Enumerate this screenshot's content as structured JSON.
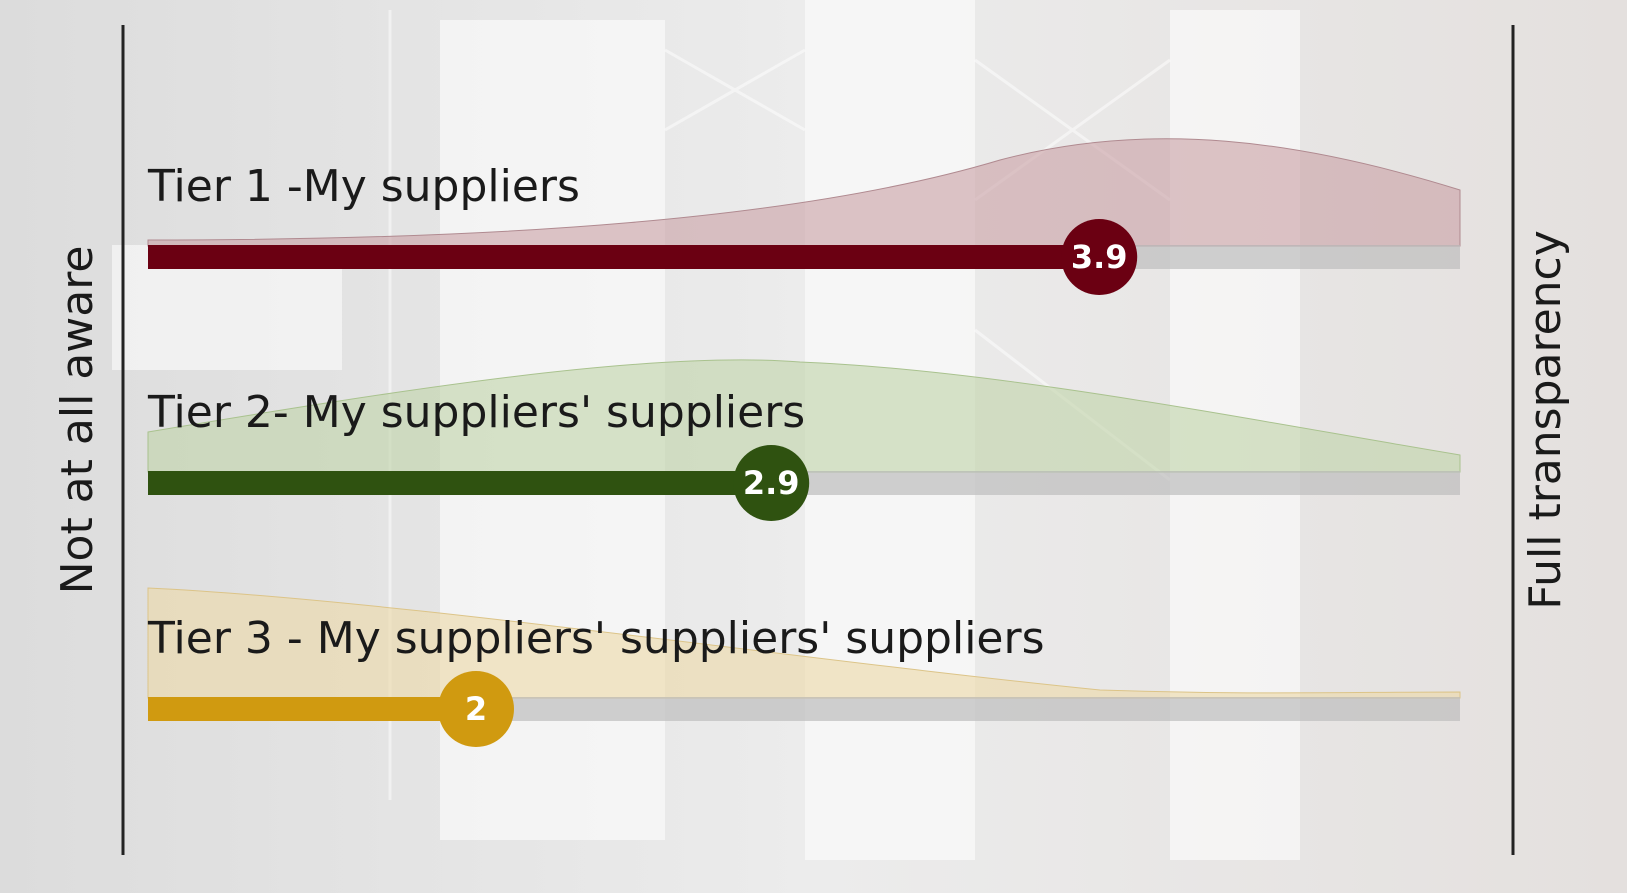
{
  "chart_data": {
    "type": "bar",
    "orientation": "horizontal",
    "axis_left_label": "Not at all aware",
    "axis_right_label": "Full transparency",
    "categories": [
      "Tier 1 -My suppliers",
      "Tier 2- My suppliers' suppliers",
      "Tier 3 - My suppliers' suppliers' suppliers"
    ],
    "values": [
      3.9,
      2.9,
      2
    ],
    "colors": [
      "#6b0012",
      "#2f5210",
      "#d09a10"
    ],
    "xlim": [
      1,
      5
    ]
  }
}
